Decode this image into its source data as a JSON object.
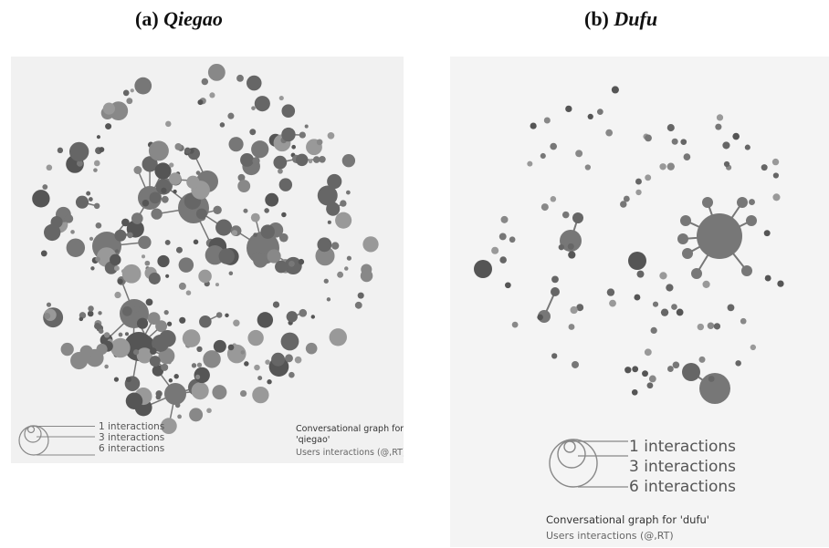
{
  "panels": [
    {
      "id": "qiegao",
      "label_prefix": "(a) ",
      "label_name": "Qiegao",
      "legend": [
        "1 interactions",
        "3 interactions",
        "6 interactions"
      ],
      "graph_title_line1": "Conversational graph for",
      "graph_title_line2": "'qiegao'",
      "graph_subtitle": "Users interactions (@,RT)"
    },
    {
      "id": "dufu",
      "label_prefix": "(b) ",
      "label_name": "Dufu",
      "legend": [
        "1 interactions",
        "3 interactions",
        "6 interactions"
      ],
      "graph_title": "Conversational graph for 'dufu'",
      "graph_subtitle": "Users interactions (@,RT)"
    }
  ],
  "colors": {
    "panel_bg": "#f1f1f1",
    "node_dark": "#555555",
    "node_mid": "#777777",
    "node_light": "#999999",
    "edge": "#777777",
    "legend_stroke": "#888888"
  }
}
